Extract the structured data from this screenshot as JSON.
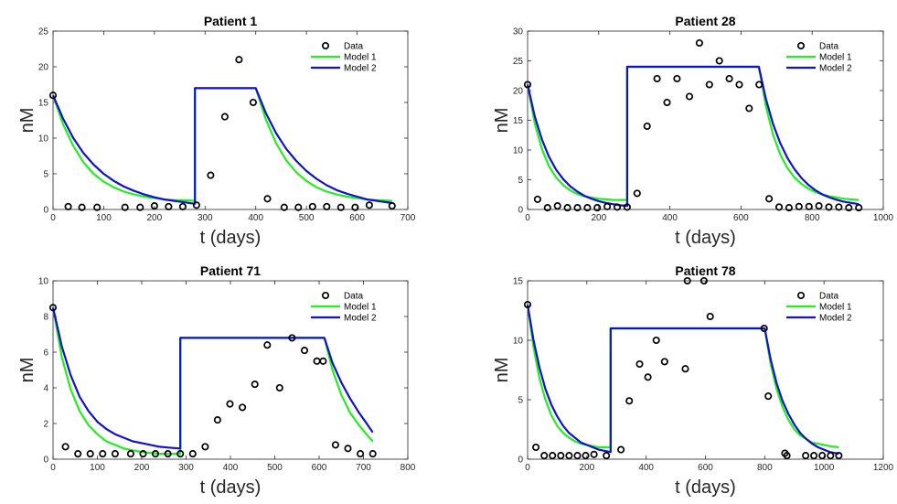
{
  "chart_data": [
    {
      "type": "scatter",
      "title": "Patient 1",
      "xlabel": "t (days)",
      "ylabel": "nM",
      "xlim": [
        0,
        700
      ],
      "ylim": [
        0,
        25
      ],
      "xticks": [
        0,
        100,
        200,
        300,
        400,
        500,
        600,
        700
      ],
      "yticks": [
        0,
        5,
        10,
        15,
        20,
        25
      ],
      "legend_position": "top-right",
      "series": [
        {
          "name": "Data",
          "kind": "points",
          "color": "#000000",
          "x": [
            0,
            30,
            57,
            87,
            142,
            172,
            200,
            228,
            256,
            283,
            311,
            339,
            367,
            395,
            423,
            456,
            484,
            512,
            540,
            568,
            596,
            624,
            669
          ],
          "y": [
            16,
            0.4,
            0.3,
            0.3,
            0.3,
            0.3,
            0.5,
            0.4,
            0.4,
            0.6,
            4.8,
            13,
            21,
            15,
            1.5,
            0.3,
            0.3,
            0.4,
            0.4,
            0.3,
            0.3,
            0.6,
            0.5
          ]
        },
        {
          "name": "Model 1",
          "kind": "line",
          "color": "#22ee22",
          "x": [
            0,
            20,
            40,
            60,
            80,
            100,
            120,
            140,
            160,
            180,
            200,
            220,
            240,
            260,
            280,
            280,
            400,
            420,
            440,
            460,
            480,
            500,
            520,
            540,
            560,
            580,
            600,
            620,
            640,
            669
          ],
          "y": [
            16,
            11.9,
            8.9,
            6.6,
            5.0,
            3.9,
            3.1,
            2.5,
            2.1,
            1.8,
            1.6,
            1.4,
            1.3,
            1.3,
            1.2,
            17,
            17,
            12.6,
            9.3,
            6.9,
            5.2,
            4.0,
            3.1,
            2.5,
            2.1,
            1.8,
            1.6,
            1.4,
            1.3,
            1.2
          ]
        },
        {
          "name": "Model 2",
          "kind": "line",
          "color": "#1111cc",
          "x": [
            0,
            20,
            40,
            60,
            80,
            100,
            120,
            140,
            160,
            180,
            200,
            220,
            240,
            260,
            280,
            280,
            400,
            420,
            440,
            460,
            480,
            500,
            520,
            540,
            560,
            580,
            600,
            620,
            640,
            669
          ],
          "y": [
            16,
            12.7,
            10.0,
            7.9,
            6.3,
            5.0,
            4.0,
            3.2,
            2.6,
            2.1,
            1.7,
            1.4,
            1.2,
            1.0,
            0.8,
            17,
            17,
            13.5,
            10.7,
            8.5,
            6.8,
            5.4,
            4.3,
            3.4,
            2.7,
            2.2,
            1.8,
            1.4,
            1.2,
            0.9
          ]
        }
      ]
    },
    {
      "type": "scatter",
      "title": "Patient 28",
      "xlabel": "t (days)",
      "ylabel": "nM",
      "xlim": [
        0,
        1000
      ],
      "ylim": [
        0,
        30
      ],
      "xticks": [
        0,
        200,
        400,
        600,
        800,
        1000
      ],
      "yticks": [
        0,
        5,
        10,
        15,
        20,
        25,
        30
      ],
      "legend_position": "top-right",
      "series": [
        {
          "name": "Data",
          "kind": "points",
          "color": "#000000",
          "x": [
            0,
            28,
            56,
            84,
            112,
            140,
            168,
            196,
            224,
            252,
            280,
            308,
            336,
            364,
            392,
            420,
            455,
            483,
            511,
            539,
            567,
            595,
            623,
            651,
            679,
            707,
            735,
            763,
            791,
            819,
            847,
            875,
            903,
            931
          ],
          "y": [
            21,
            1.7,
            0.3,
            0.6,
            0.3,
            0.3,
            0.3,
            0.3,
            0.5,
            0.4,
            0.4,
            2.7,
            14,
            22,
            18,
            22,
            19,
            28,
            21,
            25,
            22,
            21,
            17,
            21,
            1.8,
            0.4,
            0.3,
            0.5,
            0.5,
            0.6,
            0.4,
            0.4,
            0.3,
            0.3
          ]
        },
        {
          "name": "Model 1",
          "kind": "line",
          "color": "#22ee22",
          "x": [
            0,
            20,
            40,
            60,
            80,
            100,
            120,
            140,
            160,
            180,
            200,
            220,
            240,
            260,
            280,
            280,
            650,
            670,
            690,
            710,
            730,
            750,
            770,
            790,
            810,
            830,
            850,
            870,
            890,
            931
          ],
          "y": [
            21,
            14.5,
            10.2,
            7.3,
            5.4,
            4.1,
            3.2,
            2.6,
            2.2,
            2.0,
            1.8,
            1.7,
            1.6,
            1.6,
            1.6,
            24,
            24,
            17.4,
            12.6,
            9.3,
            7.0,
            5.4,
            4.3,
            3.5,
            2.9,
            2.5,
            2.2,
            2.0,
            1.8,
            1.6
          ]
        },
        {
          "name": "Model 2",
          "kind": "line",
          "color": "#1111cc",
          "x": [
            0,
            20,
            40,
            60,
            80,
            100,
            120,
            140,
            160,
            180,
            200,
            220,
            240,
            260,
            280,
            280,
            650,
            670,
            690,
            710,
            730,
            750,
            770,
            790,
            810,
            830,
            850,
            870,
            890,
            931
          ],
          "y": [
            21,
            15.7,
            11.8,
            8.9,
            6.7,
            5.1,
            3.9,
            3.0,
            2.3,
            1.8,
            1.4,
            1.1,
            0.9,
            0.7,
            0.6,
            24,
            24,
            18.6,
            14.4,
            11.2,
            8.7,
            6.8,
            5.3,
            4.1,
            3.2,
            2.5,
            2.0,
            1.6,
            1.3,
            0.9
          ]
        }
      ]
    },
    {
      "type": "scatter",
      "title": "Patient 71",
      "xlabel": "t (days)",
      "ylabel": "nM",
      "xlim": [
        0,
        800
      ],
      "ylim": [
        0,
        10
      ],
      "xticks": [
        0,
        100,
        200,
        300,
        400,
        500,
        600,
        700,
        800
      ],
      "yticks": [
        0,
        2,
        4,
        6,
        8,
        10
      ],
      "legend_position": "top-right",
      "series": [
        {
          "name": "Data",
          "kind": "points",
          "color": "#000000",
          "x": [
            0,
            28,
            56,
            84,
            112,
            140,
            175,
            203,
            231,
            259,
            287,
            315,
            343,
            371,
            399,
            427,
            455,
            483,
            511,
            539,
            567,
            595,
            609,
            637,
            665,
            693,
            721
          ],
          "y": [
            8.5,
            0.7,
            0.3,
            0.3,
            0.3,
            0.3,
            0.3,
            0.3,
            0.3,
            0.3,
            0.3,
            0.3,
            0.7,
            2.2,
            3.1,
            2.9,
            4.2,
            6.4,
            4.0,
            6.8,
            6.1,
            5.5,
            5.5,
            0.8,
            0.6,
            0.3,
            0.3
          ]
        },
        {
          "name": "Model 1",
          "kind": "line",
          "color": "#22ee22",
          "x": [
            0,
            20,
            40,
            60,
            80,
            100,
            120,
            140,
            160,
            180,
            200,
            220,
            240,
            260,
            287,
            287,
            612,
            630,
            650,
            670,
            690,
            710,
            721
          ],
          "y": [
            8.5,
            5.7,
            3.9,
            2.7,
            1.9,
            1.4,
            1.0,
            0.8,
            0.6,
            0.5,
            0.4,
            0.35,
            0.3,
            0.3,
            0.3,
            6.8,
            6.8,
            5.0,
            3.6,
            2.6,
            1.9,
            1.3,
            1.0
          ]
        },
        {
          "name": "Model 2",
          "kind": "line",
          "color": "#1111cc",
          "x": [
            0,
            20,
            40,
            60,
            80,
            100,
            120,
            140,
            160,
            180,
            200,
            220,
            240,
            260,
            287,
            287,
            612,
            630,
            650,
            670,
            690,
            710,
            721
          ],
          "y": [
            8.5,
            6.3,
            4.7,
            3.5,
            2.7,
            2.1,
            1.7,
            1.4,
            1.2,
            1.0,
            0.9,
            0.8,
            0.7,
            0.65,
            0.6,
            6.8,
            6.8,
            5.4,
            4.3,
            3.4,
            2.6,
            1.9,
            1.5
          ]
        }
      ]
    },
    {
      "type": "scatter",
      "title": "Patient 78",
      "xlabel": "t (days)",
      "ylabel": "nM",
      "xlim": [
        0,
        1200
      ],
      "ylim": [
        0,
        15
      ],
      "xticks": [
        0,
        200,
        400,
        600,
        800,
        1000,
        1200
      ],
      "yticks": [
        0,
        5,
        10,
        15
      ],
      "legend_position": "top-right",
      "series": [
        {
          "name": "Data",
          "kind": "points",
          "color": "#000000",
          "x": [
            0,
            28,
            56,
            84,
            112,
            140,
            168,
            196,
            224,
            266,
            315,
            343,
            378,
            406,
            434,
            462,
            532,
            539,
            595,
            616,
            798,
            812,
            868,
            875,
            938,
            966,
            994,
            1022,
            1050
          ],
          "y": [
            13,
            1.0,
            0.3,
            0.3,
            0.3,
            0.3,
            0.3,
            0.3,
            0.4,
            0.3,
            0.8,
            4.9,
            8.0,
            6.9,
            10,
            8.2,
            7.6,
            15,
            15,
            12,
            11,
            5.3,
            0.5,
            0.3,
            0.3,
            0.3,
            0.3,
            0.3,
            0.3
          ]
        },
        {
          "name": "Model 1",
          "kind": "line",
          "color": "#22ee22",
          "x": [
            0,
            20,
            40,
            60,
            80,
            100,
            120,
            140,
            160,
            180,
            200,
            220,
            240,
            260,
            280,
            280,
            800,
            820,
            840,
            860,
            880,
            900,
            920,
            940,
            960,
            980,
            1000,
            1020,
            1050
          ],
          "y": [
            13,
            9.4,
            6.8,
            5.0,
            3.7,
            2.8,
            2.2,
            1.8,
            1.5,
            1.3,
            1.2,
            1.1,
            1.0,
            1.0,
            1.0,
            11,
            11,
            8.0,
            5.9,
            4.4,
            3.3,
            2.5,
            2.0,
            1.7,
            1.4,
            1.3,
            1.2,
            1.1,
            1.0
          ]
        },
        {
          "name": "Model 2",
          "kind": "line",
          "color": "#1111cc",
          "x": [
            0,
            20,
            40,
            60,
            80,
            100,
            120,
            140,
            160,
            180,
            200,
            220,
            240,
            260,
            280,
            280,
            800,
            820,
            840,
            860,
            880,
            900,
            920,
            940,
            960,
            980,
            1000,
            1020,
            1050
          ],
          "y": [
            13,
            10.0,
            7.7,
            5.9,
            4.6,
            3.6,
            2.8,
            2.2,
            1.8,
            1.4,
            1.2,
            1.0,
            0.8,
            0.7,
            0.6,
            11,
            11,
            8.4,
            6.4,
            4.9,
            3.8,
            2.9,
            2.2,
            1.7,
            1.3,
            1.0,
            0.8,
            0.6,
            0.45
          ]
        }
      ]
    }
  ]
}
